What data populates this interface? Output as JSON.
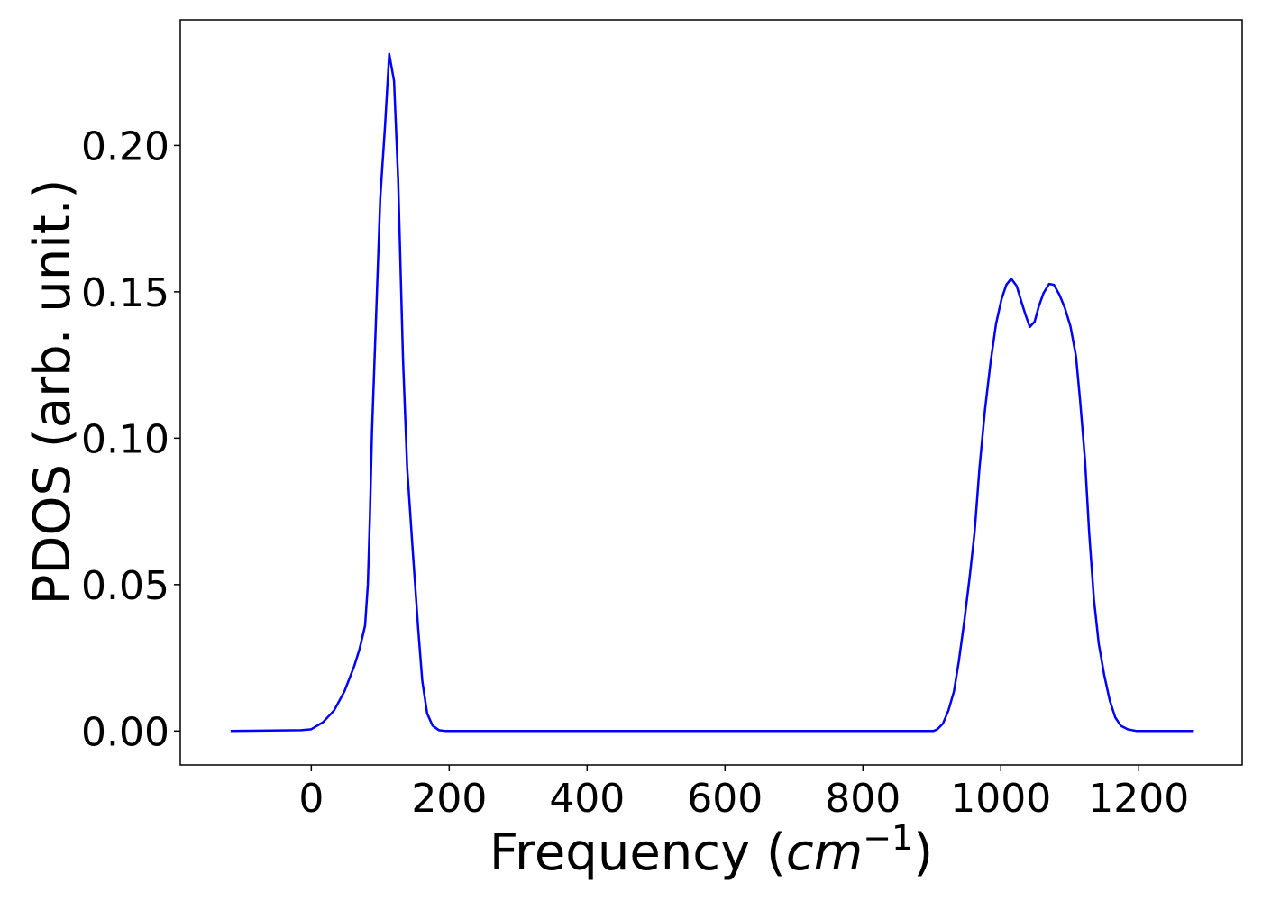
{
  "chart_data": {
    "type": "line",
    "xlabel": [
      "Frequency (",
      "cm",
      "−1",
      ")"
    ],
    "ylabel": "PDOS (arb. unit.)",
    "xlim": [
      -190,
      1350
    ],
    "ylim": [
      -0.0116,
      0.2429
    ],
    "xticks": [
      0,
      200,
      400,
      600,
      800,
      1000,
      1200
    ],
    "yticks": [
      {
        "value": 0,
        "label": "0.00"
      },
      {
        "value": 0.05,
        "label": "0.05"
      },
      {
        "value": 0.1,
        "label": "0.10"
      },
      {
        "value": 0.15,
        "label": "0.15"
      },
      {
        "value": 0.2,
        "label": "0.20"
      }
    ],
    "x": [
      -117,
      -15,
      0,
      17,
      33,
      48,
      62,
      70,
      78,
      82,
      85,
      88,
      94,
      100,
      107,
      113,
      120,
      126,
      133,
      139,
      147,
      155,
      161,
      168,
      176,
      185,
      195,
      902,
      908,
      916,
      924,
      932,
      939,
      947,
      955,
      962,
      969,
      977,
      985,
      993,
      1001,
      1008,
      1015,
      1023,
      1030,
      1036,
      1042,
      1049,
      1055,
      1062,
      1070,
      1077,
      1085,
      1093,
      1101,
      1109,
      1115,
      1122,
      1128,
      1135,
      1142,
      1150,
      1158,
      1166,
      1174,
      1184,
      1197,
      1280
    ],
    "series": [
      {
        "name": "PDOS",
        "color": "#0000ff",
        "values": [
          0,
          0.0003,
          0.0006,
          0.003,
          0.007,
          0.0135,
          0.022,
          0.028,
          0.036,
          0.05,
          0.073,
          0.102,
          0.142,
          0.182,
          0.207,
          0.2313,
          0.222,
          0.188,
          0.127,
          0.09,
          0.062,
          0.035,
          0.017,
          0.006,
          0.0018,
          0.0003,
          0,
          0,
          0.0006,
          0.0025,
          0.007,
          0.0135,
          0.0237,
          0.0375,
          0.053,
          0.068,
          0.0897,
          0.1097,
          0.1257,
          0.139,
          0.1475,
          0.1524,
          0.1545,
          0.152,
          0.1465,
          0.142,
          0.138,
          0.1398,
          0.145,
          0.1496,
          0.1527,
          0.1524,
          0.149,
          0.1444,
          0.1382,
          0.128,
          0.1128,
          0.0928,
          0.068,
          0.045,
          0.0298,
          0.019,
          0.0104,
          0.0046,
          0.0018,
          0.0006,
          0,
          0
        ]
      }
    ]
  }
}
